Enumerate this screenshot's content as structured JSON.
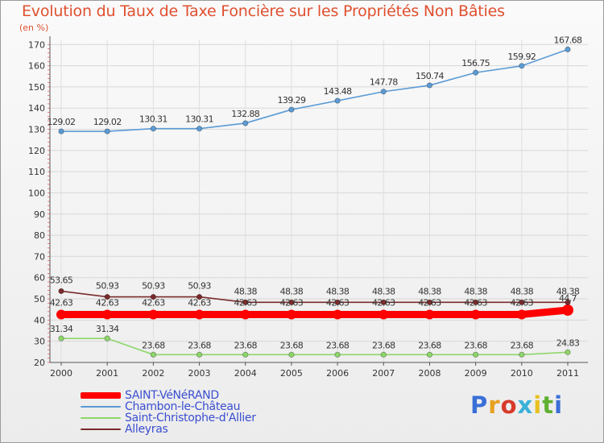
{
  "chart_data": {
    "type": "line",
    "title": "Evolution du Taux de Taxe Foncière sur les Propriétés Non Bâties",
    "unit": "(en %)",
    "categories": [
      "2000",
      "2001",
      "2002",
      "2003",
      "2004",
      "2005",
      "2006",
      "2007",
      "2008",
      "2009",
      "2010",
      "2011"
    ],
    "ylim": [
      20,
      172
    ],
    "yticks": [
      20,
      30,
      40,
      50,
      60,
      70,
      80,
      90,
      100,
      110,
      120,
      130,
      140,
      150,
      160,
      170
    ],
    "series": [
      {
        "name": "SAINT-VéNéRAND",
        "color": "#ff0000",
        "values": [
          42.63,
          42.63,
          42.63,
          42.63,
          42.63,
          42.63,
          42.63,
          42.63,
          42.63,
          42.63,
          42.63,
          44.7
        ],
        "labels": [
          "42.63",
          "42.63",
          "42.63",
          "42.63",
          "42.63",
          "42.63",
          "42.63",
          "42.63",
          "42.63",
          "42.63",
          "42.63",
          "44.7"
        ]
      },
      {
        "name": "Chambon-le-Château",
        "color": "#5b9bd5",
        "values": [
          129.02,
          129.02,
          130.31,
          130.31,
          132.88,
          139.29,
          143.48,
          147.78,
          150.74,
          156.75,
          159.92,
          167.68
        ],
        "labels": [
          "129.02",
          "129.02",
          "130.31",
          "130.31",
          "132.88",
          "139.29",
          "143.48",
          "147.78",
          "150.74",
          "156.75",
          "159.92",
          "167.68"
        ]
      },
      {
        "name": "Saint-Christophe-d'Allier",
        "color": "#8ed66b",
        "values": [
          31.34,
          31.34,
          23.68,
          23.68,
          23.68,
          23.68,
          23.68,
          23.68,
          23.68,
          23.68,
          23.68,
          24.83
        ],
        "labels": [
          "31.34",
          "31.34",
          "23.68",
          "23.68",
          "23.68",
          "23.68",
          "23.68",
          "23.68",
          "23.68",
          "23.68",
          "23.68",
          "24.83"
        ]
      },
      {
        "name": "Alleyras",
        "color": "#7a2a2a",
        "values": [
          53.65,
          50.93,
          50.93,
          50.93,
          48.38,
          48.38,
          48.38,
          48.38,
          48.38,
          48.38,
          48.38,
          48.38
        ],
        "labels": [
          "53.65",
          "50.93",
          "50.93",
          "50.93",
          "48.38",
          "48.38",
          "48.38",
          "48.38",
          "48.38",
          "48.38",
          "48.38",
          "48.38"
        ]
      }
    ],
    "legend_position": "bottom-left"
  },
  "brand": {
    "text": "Proxiti",
    "letters": [
      "P",
      "r",
      "o",
      "x",
      "i",
      "t",
      "i"
    ],
    "colors": [
      "#3a6fd8",
      "#e8a020",
      "#d83a2a",
      "#3ab0d8",
      "#e8c020",
      "#60b030",
      "#3a6fd8"
    ]
  }
}
